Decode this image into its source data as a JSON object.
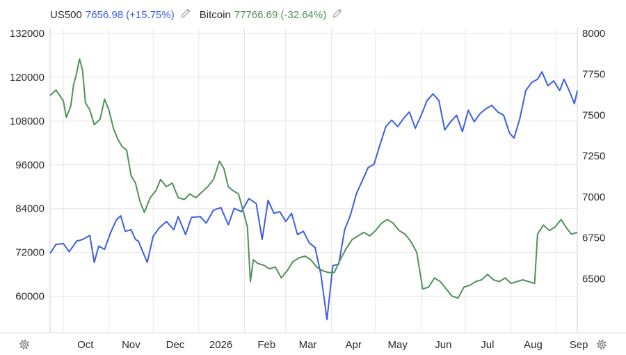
{
  "legend": {
    "series1": {
      "name": "US500",
      "value": "7656.98",
      "change": "(+15.75%)"
    },
    "series2": {
      "name": "Bitcoin",
      "value": "77766.69",
      "change": "(-32.64%)"
    }
  },
  "colors": {
    "us500": "#3a5fe0",
    "bitcoin": "#4e9155",
    "grid": "#e6e6e6",
    "text": "#2b2b2b",
    "icon": "#a8a8a8"
  },
  "icons": {
    "edit": "pencil-icon",
    "settings": "gear-icon"
  },
  "chart_data": {
    "type": "line",
    "title": "",
    "xlabel": "",
    "ylabel_left": "",
    "ylabel_right": "",
    "grid": true,
    "legend_placement": "top-left",
    "x_ticks": [
      "Oct",
      "Nov",
      "Dec",
      "2026",
      "Feb",
      "Mar",
      "Apr",
      "May",
      "Jun",
      "Jul",
      "Aug",
      "Sep"
    ],
    "x_range": [
      "2025-09-22",
      "2026-09-15"
    ],
    "left_axis": {
      "series": "Bitcoin",
      "ticks": [
        132000,
        120000,
        108000,
        96000,
        84000,
        72000,
        60000
      ],
      "ylim": [
        50000,
        132000
      ]
    },
    "right_axis": {
      "series": "US500",
      "ticks": [
        8000,
        7750,
        7500,
        7250,
        7000,
        6750,
        6500
      ],
      "ylim": [
        6170,
        8000
      ]
    },
    "series": [
      {
        "name": "US500",
        "axis": "right",
        "points": [
          [
            "2025-09-22",
            6655
          ],
          [
            "2025-09-26",
            6710
          ],
          [
            "2025-10-01",
            6715
          ],
          [
            "2025-10-05",
            6665
          ],
          [
            "2025-10-10",
            6730
          ],
          [
            "2025-10-14",
            6740
          ],
          [
            "2025-10-19",
            6765
          ],
          [
            "2025-10-22",
            6600
          ],
          [
            "2025-10-25",
            6700
          ],
          [
            "2025-10-29",
            6680
          ],
          [
            "2025-11-02",
            6780
          ],
          [
            "2025-11-06",
            6860
          ],
          [
            "2025-11-09",
            6885
          ],
          [
            "2025-11-12",
            6790
          ],
          [
            "2025-11-16",
            6800
          ],
          [
            "2025-11-19",
            6740
          ],
          [
            "2025-11-21",
            6730
          ],
          [
            "2025-11-27",
            6600
          ],
          [
            "2025-12-01",
            6760
          ],
          [
            "2025-12-05",
            6810
          ],
          [
            "2025-12-10",
            6850
          ],
          [
            "2025-12-15",
            6800
          ],
          [
            "2025-12-18",
            6880
          ],
          [
            "2025-12-23",
            6770
          ],
          [
            "2025-12-27",
            6875
          ],
          [
            "2026-01-02",
            6880
          ],
          [
            "2026-01-06",
            6840
          ],
          [
            "2026-01-11",
            6920
          ],
          [
            "2026-01-16",
            6935
          ],
          [
            "2026-01-21",
            6830
          ],
          [
            "2026-01-25",
            6930
          ],
          [
            "2026-01-30",
            6910
          ],
          [
            "2026-02-04",
            6990
          ],
          [
            "2026-02-09",
            6960
          ],
          [
            "2026-02-13",
            6740
          ],
          [
            "2026-02-17",
            6980
          ],
          [
            "2026-02-21",
            6900
          ],
          [
            "2026-02-25",
            6910
          ],
          [
            "2026-03-01",
            6850
          ],
          [
            "2026-03-05",
            6900
          ],
          [
            "2026-03-09",
            6770
          ],
          [
            "2026-03-13",
            6790
          ],
          [
            "2026-03-17",
            6720
          ],
          [
            "2026-03-21",
            6690
          ],
          [
            "2026-03-25",
            6520
          ],
          [
            "2026-03-29",
            6250
          ],
          [
            "2026-04-02",
            6580
          ],
          [
            "2026-04-06",
            6590
          ],
          [
            "2026-04-10",
            6800
          ],
          [
            "2026-04-14",
            6890
          ],
          [
            "2026-04-18",
            7020
          ],
          [
            "2026-04-22",
            7100
          ],
          [
            "2026-04-26",
            7180
          ],
          [
            "2026-04-30",
            7200
          ],
          [
            "2026-05-04",
            7320
          ],
          [
            "2026-05-08",
            7430
          ],
          [
            "2026-05-12",
            7470
          ],
          [
            "2026-05-16",
            7430
          ],
          [
            "2026-05-20",
            7480
          ],
          [
            "2026-05-24",
            7520
          ],
          [
            "2026-05-28",
            7420
          ],
          [
            "2026-06-01",
            7500
          ],
          [
            "2026-06-05",
            7590
          ],
          [
            "2026-06-09",
            7630
          ],
          [
            "2026-06-13",
            7590
          ],
          [
            "2026-06-17",
            7410
          ],
          [
            "2026-06-21",
            7460
          ],
          [
            "2026-06-25",
            7500
          ],
          [
            "2026-06-29",
            7400
          ],
          [
            "2026-07-03",
            7530
          ],
          [
            "2026-07-07",
            7460
          ],
          [
            "2026-07-11",
            7510
          ],
          [
            "2026-07-15",
            7540
          ],
          [
            "2026-07-19",
            7560
          ],
          [
            "2026-07-23",
            7520
          ],
          [
            "2026-07-27",
            7500
          ],
          [
            "2026-07-31",
            7390
          ],
          [
            "2026-08-03",
            7360
          ],
          [
            "2026-08-07",
            7480
          ],
          [
            "2026-08-11",
            7650
          ],
          [
            "2026-08-15",
            7700
          ],
          [
            "2026-08-19",
            7720
          ],
          [
            "2026-08-22",
            7765
          ],
          [
            "2026-08-26",
            7680
          ],
          [
            "2026-08-30",
            7710
          ],
          [
            "2026-09-03",
            7650
          ],
          [
            "2026-09-06",
            7720
          ],
          [
            "2026-09-10",
            7640
          ],
          [
            "2026-09-13",
            7570
          ],
          [
            "2026-09-15",
            7650
          ]
        ]
      },
      {
        "name": "Bitcoin",
        "axis": "left",
        "points": [
          [
            "2025-09-22",
            115000
          ],
          [
            "2025-09-26",
            116500
          ],
          [
            "2025-10-01",
            113500
          ],
          [
            "2025-10-03",
            109000
          ],
          [
            "2025-10-06",
            112000
          ],
          [
            "2025-10-08",
            118000
          ],
          [
            "2025-10-10",
            121000
          ],
          [
            "2025-10-12",
            125000
          ],
          [
            "2025-10-14",
            122000
          ],
          [
            "2025-10-16",
            113000
          ],
          [
            "2025-10-19",
            111000
          ],
          [
            "2025-10-22",
            107000
          ],
          [
            "2025-10-26",
            108500
          ],
          [
            "2025-10-29",
            114000
          ],
          [
            "2025-11-01",
            111000
          ],
          [
            "2025-11-04",
            106000
          ],
          [
            "2025-11-07",
            103000
          ],
          [
            "2025-11-10",
            101000
          ],
          [
            "2025-11-13",
            100000
          ],
          [
            "2025-11-16",
            93000
          ],
          [
            "2025-11-19",
            91000
          ],
          [
            "2025-11-22",
            86000
          ],
          [
            "2025-11-25",
            83000
          ],
          [
            "2025-11-29",
            87000
          ],
          [
            "2025-12-03",
            89000
          ],
          [
            "2025-12-06",
            92000
          ],
          [
            "2025-12-10",
            90000
          ],
          [
            "2025-12-14",
            91000
          ],
          [
            "2025-12-18",
            87000
          ],
          [
            "2025-12-22",
            86500
          ],
          [
            "2025-12-26",
            88000
          ],
          [
            "2025-12-30",
            87000
          ],
          [
            "2026-01-03",
            88500
          ],
          [
            "2026-01-07",
            90000
          ],
          [
            "2026-01-11",
            92000
          ],
          [
            "2026-01-15",
            97000
          ],
          [
            "2026-01-18",
            95000
          ],
          [
            "2026-01-21",
            90000
          ],
          [
            "2026-01-24",
            89000
          ],
          [
            "2026-01-28",
            88000
          ],
          [
            "2026-02-01",
            82000
          ],
          [
            "2026-02-03",
            79000
          ],
          [
            "2026-02-05",
            64000
          ],
          [
            "2026-02-07",
            70000
          ],
          [
            "2026-02-10",
            69000
          ],
          [
            "2026-02-14",
            68500
          ],
          [
            "2026-02-18",
            67500
          ],
          [
            "2026-02-22",
            68000
          ],
          [
            "2026-02-26",
            65000
          ],
          [
            "2026-03-02",
            67000
          ],
          [
            "2026-03-06",
            69500
          ],
          [
            "2026-03-10",
            70500
          ],
          [
            "2026-03-14",
            71000
          ],
          [
            "2026-03-18",
            70000
          ],
          [
            "2026-03-22",
            68000
          ],
          [
            "2026-03-26",
            67000
          ],
          [
            "2026-03-30",
            66500
          ],
          [
            "2026-04-03",
            66500
          ],
          [
            "2026-04-07",
            70000
          ],
          [
            "2026-04-11",
            73000
          ],
          [
            "2026-04-15",
            75500
          ],
          [
            "2026-04-19",
            76500
          ],
          [
            "2026-04-23",
            77500
          ],
          [
            "2026-04-27",
            76500
          ],
          [
            "2026-05-01",
            78000
          ],
          [
            "2026-05-05",
            80000
          ],
          [
            "2026-05-09",
            81000
          ],
          [
            "2026-05-13",
            80000
          ],
          [
            "2026-05-17",
            78000
          ],
          [
            "2026-05-21",
            77000
          ],
          [
            "2026-05-25",
            75000
          ],
          [
            "2026-05-29",
            72000
          ],
          [
            "2026-06-02",
            62000
          ],
          [
            "2026-06-06",
            62500
          ],
          [
            "2026-06-10",
            65000
          ],
          [
            "2026-06-14",
            64000
          ],
          [
            "2026-06-18",
            62000
          ],
          [
            "2026-06-22",
            60000
          ],
          [
            "2026-06-26",
            59500
          ],
          [
            "2026-06-30",
            62500
          ],
          [
            "2026-07-04",
            63000
          ],
          [
            "2026-07-08",
            64000
          ],
          [
            "2026-07-12",
            64500
          ],
          [
            "2026-07-16",
            66000
          ],
          [
            "2026-07-20",
            64500
          ],
          [
            "2026-07-24",
            64000
          ],
          [
            "2026-07-28",
            65000
          ],
          [
            "2026-08-01",
            63500
          ],
          [
            "2026-08-05",
            64000
          ],
          [
            "2026-08-09",
            64500
          ],
          [
            "2026-08-13",
            64000
          ],
          [
            "2026-08-17",
            63500
          ],
          [
            "2026-08-19",
            77000
          ],
          [
            "2026-08-23",
            79500
          ],
          [
            "2026-08-27",
            78000
          ],
          [
            "2026-08-31",
            79000
          ],
          [
            "2026-09-04",
            81000
          ],
          [
            "2026-09-08",
            78500
          ],
          [
            "2026-09-11",
            77000
          ],
          [
            "2026-09-15",
            77500
          ]
        ]
      }
    ]
  }
}
